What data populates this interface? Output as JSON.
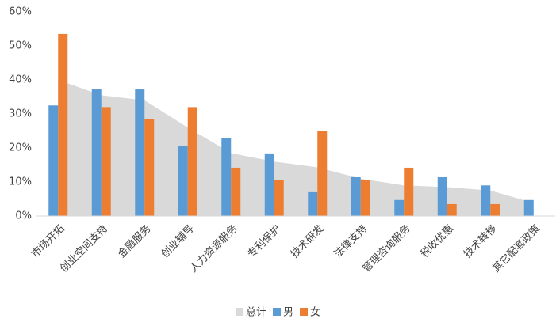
{
  "chart_data": {
    "type": "bar",
    "categories": [
      "市场开拓",
      "创业空间支持",
      "金融服务",
      "创业辅导",
      "人力资源服务",
      "专利保护",
      "技术研发",
      "法律支持",
      "管理咨询服务",
      "税收优惠",
      "技术转移",
      "其它配套政策"
    ],
    "series": [
      {
        "name": "总计",
        "type": "area",
        "color": "#d9d9d9",
        "values": [
          40,
          35.5,
          34,
          26,
          18.5,
          16,
          14.3,
          11,
          9,
          8.5,
          7.5,
          3.8
        ]
      },
      {
        "name": "男",
        "type": "bar",
        "color": "#5b9bd5",
        "values": [
          32.5,
          37.2,
          37.2,
          20.7,
          23,
          18.4,
          7,
          11.4,
          4.7,
          11.4,
          9,
          4.7
        ]
      },
      {
        "name": "女",
        "type": "bar",
        "color": "#ed7d31",
        "values": [
          53.5,
          32,
          28.5,
          32,
          14.2,
          10.5,
          25,
          10.5,
          14.2,
          3.5,
          3.5,
          0
        ]
      }
    ],
    "ylim": [
      0,
      60
    ],
    "yticks": [
      {
        "value": 0,
        "label": "0%"
      },
      {
        "value": 10,
        "label": "10%"
      },
      {
        "value": 20,
        "label": "20%"
      },
      {
        "value": 30,
        "label": "30%"
      },
      {
        "value": 40,
        "label": "40%"
      },
      {
        "value": 50,
        "label": "50%"
      },
      {
        "value": 60,
        "label": "60%"
      }
    ],
    "grid": false,
    "legend": "bottom"
  }
}
